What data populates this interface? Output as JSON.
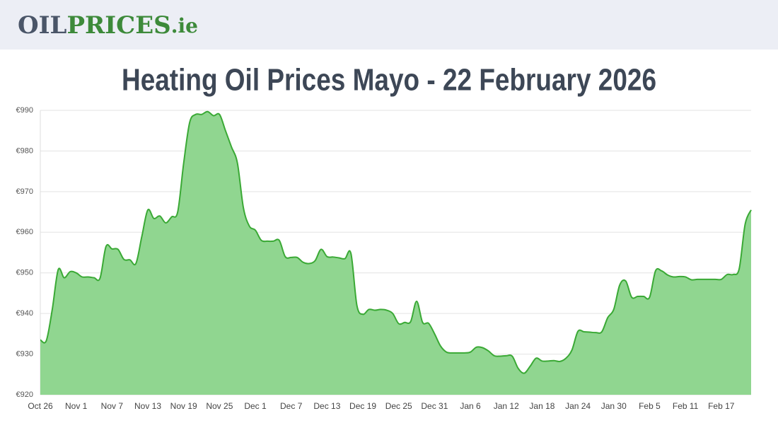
{
  "header": {
    "logo": [
      "OIL",
      "PRICES",
      ".ie"
    ]
  },
  "chart_data": {
    "type": "area",
    "title": "Heating Oil Prices Mayo - 22 February 2026",
    "categories": [
      "Oct 26",
      null,
      null,
      null,
      null,
      null,
      "Nov 1",
      null,
      null,
      null,
      null,
      null,
      "Nov 7",
      null,
      null,
      null,
      null,
      null,
      "Nov 13",
      null,
      null,
      null,
      null,
      null,
      "Nov 19",
      null,
      null,
      null,
      null,
      null,
      "Nov 25",
      null,
      null,
      null,
      null,
      null,
      "Dec 1",
      null,
      null,
      null,
      null,
      null,
      "Dec 7",
      null,
      null,
      null,
      null,
      null,
      "Dec 13",
      null,
      null,
      null,
      null,
      null,
      "Dec 19",
      null,
      null,
      null,
      null,
      null,
      "Dec 25",
      null,
      null,
      null,
      null,
      null,
      "Dec 31",
      null,
      null,
      null,
      null,
      null,
      "Jan 6",
      null,
      null,
      null,
      null,
      null,
      "Jan 12",
      null,
      null,
      null,
      null,
      null,
      "Jan 18",
      null,
      null,
      null,
      null,
      null,
      "Jan 24",
      null,
      null,
      null,
      null,
      null,
      "Jan 30",
      null,
      null,
      null,
      null,
      null,
      "Feb 5",
      null,
      null,
      null,
      null,
      null,
      "Feb 11",
      null,
      null,
      null,
      null,
      null,
      "Feb 17",
      null,
      null,
      null,
      null,
      null
    ],
    "values": [
      933.5,
      933.3,
      941,
      950.8,
      948.8,
      950.3,
      950,
      949,
      949,
      948.8,
      948.7,
      956.5,
      955.9,
      955.8,
      953.3,
      953.2,
      952.3,
      959,
      965.5,
      963.4,
      964,
      962.3,
      963.8,
      965,
      977,
      987,
      989,
      989,
      989.7,
      988.7,
      989,
      985,
      981,
      977,
      966,
      961.5,
      960.5,
      958,
      957.8,
      957.8,
      958,
      954,
      953.8,
      953.8,
      952.6,
      952.3,
      953,
      955.8,
      954,
      953.9,
      953.7,
      953.5,
      954.8,
      942,
      939.8,
      941,
      940.8,
      941,
      940.8,
      940,
      937.5,
      937.8,
      938,
      943,
      937.8,
      937.6,
      935,
      932,
      930.5,
      930.3,
      930.3,
      930.3,
      930.5,
      931.7,
      931.6,
      930.8,
      929.6,
      929.5,
      929.6,
      929.5,
      926.5,
      925.3,
      927,
      929,
      928.3,
      928.3,
      928.4,
      928.2,
      929,
      931,
      935.6,
      935.5,
      935.4,
      935.3,
      935.5,
      939,
      941,
      947,
      948,
      944,
      944.2,
      944.2,
      944,
      950.5,
      950.5,
      949.5,
      949,
      949.1,
      949,
      948.3,
      948.4,
      948.4,
      948.4,
      948.4,
      948.4,
      949.6,
      949.6,
      951,
      962,
      965.5
    ],
    "color": "#3aa935",
    "fill": "#90d690",
    "ylim": [
      920,
      990
    ],
    "yticks": [
      {
        "value": 920,
        "label": "€920"
      },
      {
        "value": 930,
        "label": "€930"
      },
      {
        "value": 940,
        "label": "€940"
      },
      {
        "value": 950,
        "label": "€950"
      },
      {
        "value": 960,
        "label": "€960"
      },
      {
        "value": 970,
        "label": "€970"
      },
      {
        "value": 980,
        "label": "€980"
      },
      {
        "value": 990,
        "label": "€990"
      }
    ],
    "grid": true
  }
}
